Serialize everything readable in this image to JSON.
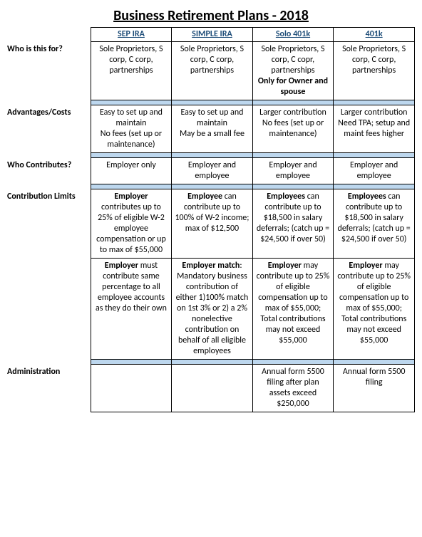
{
  "title": "Business Retirement Plans - 2018",
  "headers": [
    "SEP IRA",
    "SIMPLE IRA",
    "Solo 401k",
    "401k"
  ],
  "rows": {
    "who_for": {
      "label": "Who is this for?",
      "cells": [
        [
          {
            "t": "Sole Proprietors, S corp, C corp, partnerships"
          }
        ],
        [
          {
            "t": "Sole Proprietors, S corp, C corp, partnerships"
          }
        ],
        [
          {
            "t": "Sole Proprietors, S corp, C copr, partnerships"
          },
          {
            "t": "Only for Owner and spouse",
            "b": true
          }
        ],
        [
          {
            "t": "Sole Proprietors, S corp, C corp, partnerships"
          }
        ]
      ]
    },
    "advantages": {
      "label": "Advantages/Costs",
      "cells": [
        [
          {
            "t": "Easy to set up and maintain"
          },
          {
            "t": "No fees (set up or maintenance)"
          }
        ],
        [
          {
            "t": "Easy to set up and maintain"
          },
          {
            "t": "May be a small fee"
          }
        ],
        [
          {
            "t": "Larger contribution"
          },
          {
            "t": "No fees (set up or maintenance)"
          }
        ],
        [
          {
            "t": "Larger contribution"
          },
          {
            "t": "Need TPA; setup and maint fees higher"
          }
        ]
      ]
    },
    "who_contributes": {
      "label": "Who Contributes?",
      "cells": [
        [
          {
            "t": "Employer only"
          }
        ],
        [
          {
            "t": "Employer and employee"
          }
        ],
        [
          {
            "t": "Employer and employee"
          }
        ],
        [
          {
            "t": "Employer and employee"
          }
        ]
      ]
    },
    "limits1": {
      "label": "Contribution Limits",
      "cells": [
        [
          {
            "runs": [
              {
                "t": "Employer",
                "b": true
              },
              {
                "t": " contributes up to 25% of eligible W-2 employee compensation or up to max of $55,000"
              }
            ]
          }
        ],
        [
          {
            "runs": [
              {
                "t": "Employee",
                "b": true
              },
              {
                "t": " can contribute up to 100% of W-2 income; max of $12,500"
              }
            ]
          }
        ],
        [
          {
            "runs": [
              {
                "t": "Employees",
                "b": true
              },
              {
                "t": " can contribute up to $18,500 in salary deferrals; (catch up = $24,500 if over 50)"
              }
            ]
          }
        ],
        [
          {
            "runs": [
              {
                "t": "Employees",
                "b": true
              },
              {
                "t": " can contribute up to $18,500 in salary deferrals; (catch up = $24,500 if over 50)"
              }
            ]
          }
        ]
      ]
    },
    "limits2": {
      "label": "",
      "cells": [
        [
          {
            "runs": [
              {
                "t": "Employer",
                "b": true
              },
              {
                "t": " must contribute same percentage to all employee accounts as they do their own"
              }
            ]
          }
        ],
        [
          {
            "runs": [
              {
                "t": "Employer match",
                "b": true
              },
              {
                "t": ": Mandatory business contribution of either 1)100% match on 1st 3% or 2) a 2% nonelective contribution on behalf of all eligible employees"
              }
            ]
          }
        ],
        [
          {
            "runs": [
              {
                "t": "Employer",
                "b": true
              },
              {
                "t": " may contribute up to 25% of eligible compensation up to max of $55,000; Total contributions may not exceed $55,000"
              }
            ]
          }
        ],
        [
          {
            "runs": [
              {
                "t": "Employer",
                "b": true
              },
              {
                "t": " may contribute up to 25% of eligible compensation up to max of $55,000; Total contributions may not exceed $55,000"
              }
            ]
          }
        ]
      ]
    },
    "admin": {
      "label": "Administration",
      "cells": [
        [
          {
            "t": ""
          }
        ],
        [
          {
            "t": ""
          }
        ],
        [
          {
            "t": "Annual form 5500 filing after plan assets exceed $250,000"
          }
        ],
        [
          {
            "t": "Annual form 5500 filing"
          }
        ]
      ]
    }
  },
  "colors": {
    "divider": "#bdd7ee",
    "header_text": "#1f4e79"
  }
}
